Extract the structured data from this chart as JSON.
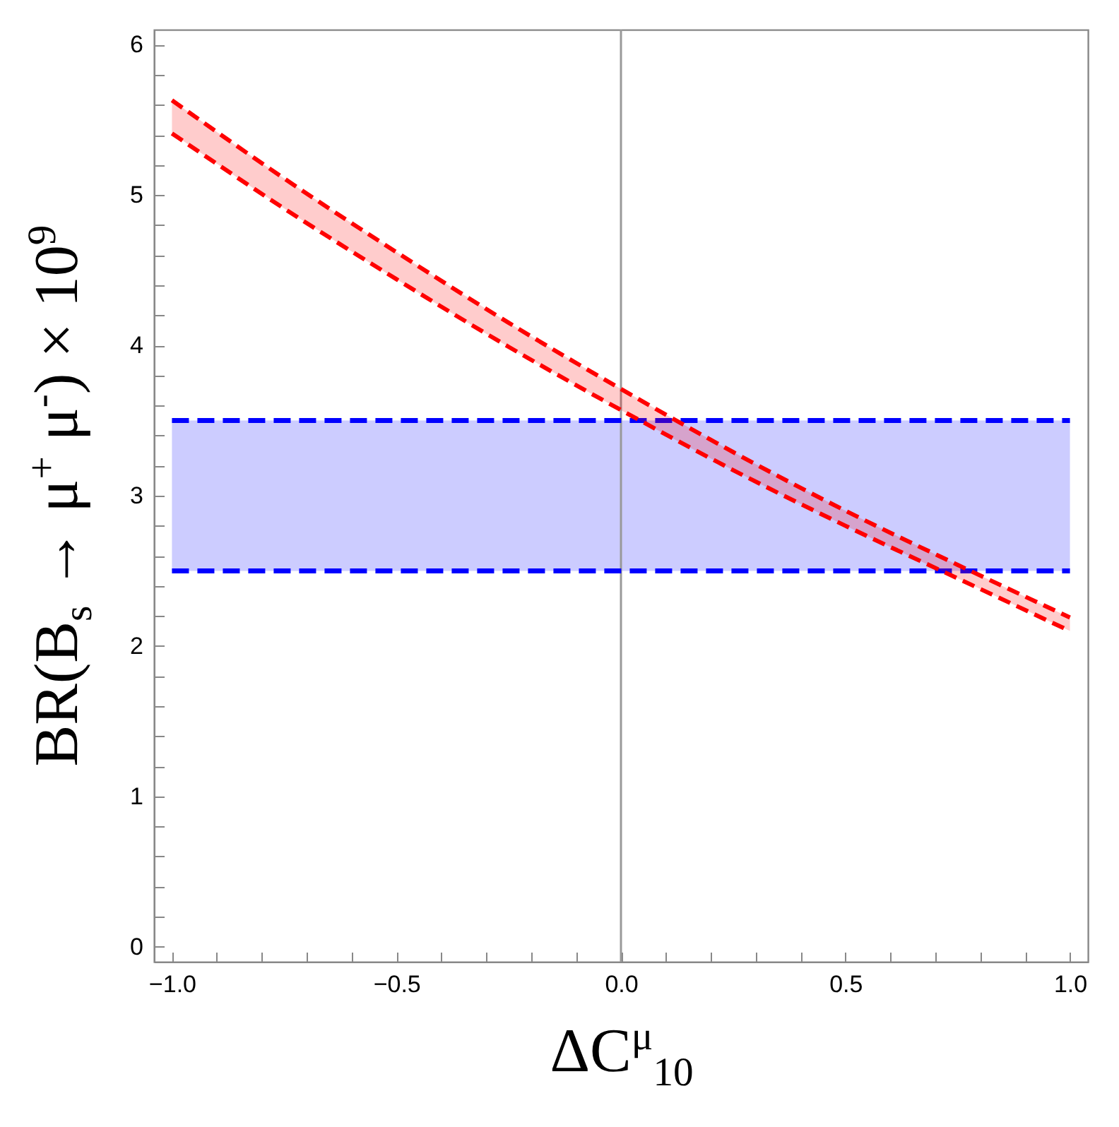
{
  "chart_data": {
    "type": "line",
    "xlabel": "ΔC$^{μ}$$_{10}$",
    "ylabel": "BR(B$_{s}$ → μ$^{+}$ μ$^{-}$) × 10$^{9}$",
    "x": [
      -1,
      -0.75,
      -0.5,
      -0.25,
      0,
      0.25,
      0.5,
      0.75,
      1
    ],
    "series": [
      {
        "color": "#ff0000",
        "line_style": "dashed",
        "values": [
          5.63,
          5.11,
          4.62,
          4.15,
          3.71,
          3.29,
          2.9,
          2.54,
          2.19
        ],
        "lower": [
          5.41,
          4.91,
          4.44,
          3.99,
          3.57,
          3.17,
          2.8,
          2.45,
          2.1
        ],
        "upper": [
          5.63,
          5.11,
          4.62,
          4.15,
          3.71,
          3.29,
          2.9,
          2.54,
          2.19
        ]
      },
      {
        "color": "#ff0000",
        "line_style": "dashed",
        "values": [
          5.41,
          4.91,
          4.44,
          3.99,
          3.57,
          3.17,
          2.8,
          2.45,
          2.1
        ]
      }
    ],
    "bands": [
      {
        "axis": "y",
        "from": 2.5,
        "to": 3.5,
        "color": "#ccccff"
      }
    ],
    "ref_lines": [
      {
        "axis": "x",
        "value": 0,
        "color": "#999999"
      },
      {
        "axis": "y",
        "value": 2.5,
        "color": "#0000ff",
        "line_style": "dashed"
      },
      {
        "axis": "y",
        "value": 3.5,
        "color": "#0000ff",
        "line_style": "dashed"
      }
    ],
    "xlim": [
      -1.04,
      1.04
    ],
    "xticks": [
      {
        "value": -1,
        "label": "−1.0"
      },
      {
        "value": -0.9,
        "label": null
      },
      {
        "value": -0.8,
        "label": null
      },
      {
        "value": -0.7,
        "label": null
      },
      {
        "value": -0.6,
        "label": null
      },
      {
        "value": -0.5,
        "label": "−0.5"
      },
      {
        "value": -0.4,
        "label": null
      },
      {
        "value": -0.3,
        "label": null
      },
      {
        "value": -0.2,
        "label": null
      },
      {
        "value": -0.1,
        "label": null
      },
      {
        "value": 0,
        "label": "0.0"
      },
      {
        "value": 0.1,
        "label": null
      },
      {
        "value": 0.2,
        "label": null
      },
      {
        "value": 0.3,
        "label": null
      },
      {
        "value": 0.4,
        "label": null
      },
      {
        "value": 0.5,
        "label": "0.5"
      },
      {
        "value": 0.6,
        "label": null
      },
      {
        "value": 0.7,
        "label": null
      },
      {
        "value": 0.8,
        "label": null
      },
      {
        "value": 0.9,
        "label": null
      },
      {
        "value": 1,
        "label": "1.0"
      }
    ],
    "ylim": [
      -0.1,
      6.1
    ],
    "yticks": [
      0,
      {
        "value": 0.2,
        "label": null
      },
      {
        "value": 0.4,
        "label": null
      },
      {
        "value": 0.6,
        "label": null
      },
      {
        "value": 0.8,
        "label": null
      },
      1,
      {
        "value": 1.2,
        "label": null
      },
      {
        "value": 1.4,
        "label": null
      },
      {
        "value": 1.6,
        "label": null
      },
      {
        "value": 1.8,
        "label": null
      },
      2,
      {
        "value": 2.2,
        "label": null
      },
      {
        "value": 2.4,
        "label": null
      },
      {
        "value": 2.6,
        "label": null
      },
      {
        "value": 2.8,
        "label": null
      },
      3,
      {
        "value": 3.2,
        "label": null
      },
      {
        "value": 3.4,
        "label": null
      },
      {
        "value": 3.6,
        "label": null
      },
      {
        "value": 3.8,
        "label": null
      },
      4,
      {
        "value": 4.2,
        "label": null
      },
      {
        "value": 4.4,
        "label": null
      },
      {
        "value": 4.6,
        "label": null
      },
      {
        "value": 4.8,
        "label": null
      },
      5,
      {
        "value": 5.2,
        "label": null
      },
      {
        "value": 5.4,
        "label": null
      },
      {
        "value": 5.6,
        "label": null
      },
      {
        "value": 5.8,
        "label": null
      },
      6
    ],
    "grid": false
  }
}
